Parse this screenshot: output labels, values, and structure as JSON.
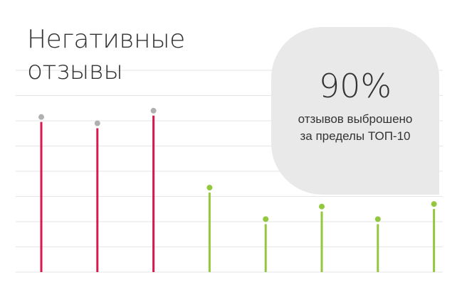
{
  "title": {
    "line1": "Негативные",
    "line2": "отзывы"
  },
  "callout": {
    "value": "90%",
    "line1": "отзывов выброшено",
    "line2": "за пределы ТОП-10"
  },
  "colors": {
    "grid": "#e5e5e5",
    "negative_stem": "#d9184d",
    "negative_dot": "#b0b0b0",
    "positive_stem": "#93c83e",
    "positive_dot": "#93c83e",
    "callout_bg": "#e9e9e9",
    "text": "#333333"
  },
  "chart_data": {
    "type": "bar",
    "style": "lollipop",
    "categories": [
      "",
      "",
      "",
      "",
      "",
      "",
      "",
      ""
    ],
    "values": [
      6.15,
      5.9,
      6.4,
      3.35,
      2.1,
      2.6,
      2.1,
      2.7
    ],
    "point_groups": [
      "negative",
      "negative",
      "negative",
      "positive",
      "positive",
      "positive",
      "positive",
      "positive"
    ],
    "ylim": [
      0,
      8
    ],
    "grid": true,
    "grid_lines": 8,
    "title": "",
    "xlabel": "",
    "ylabel": ""
  }
}
